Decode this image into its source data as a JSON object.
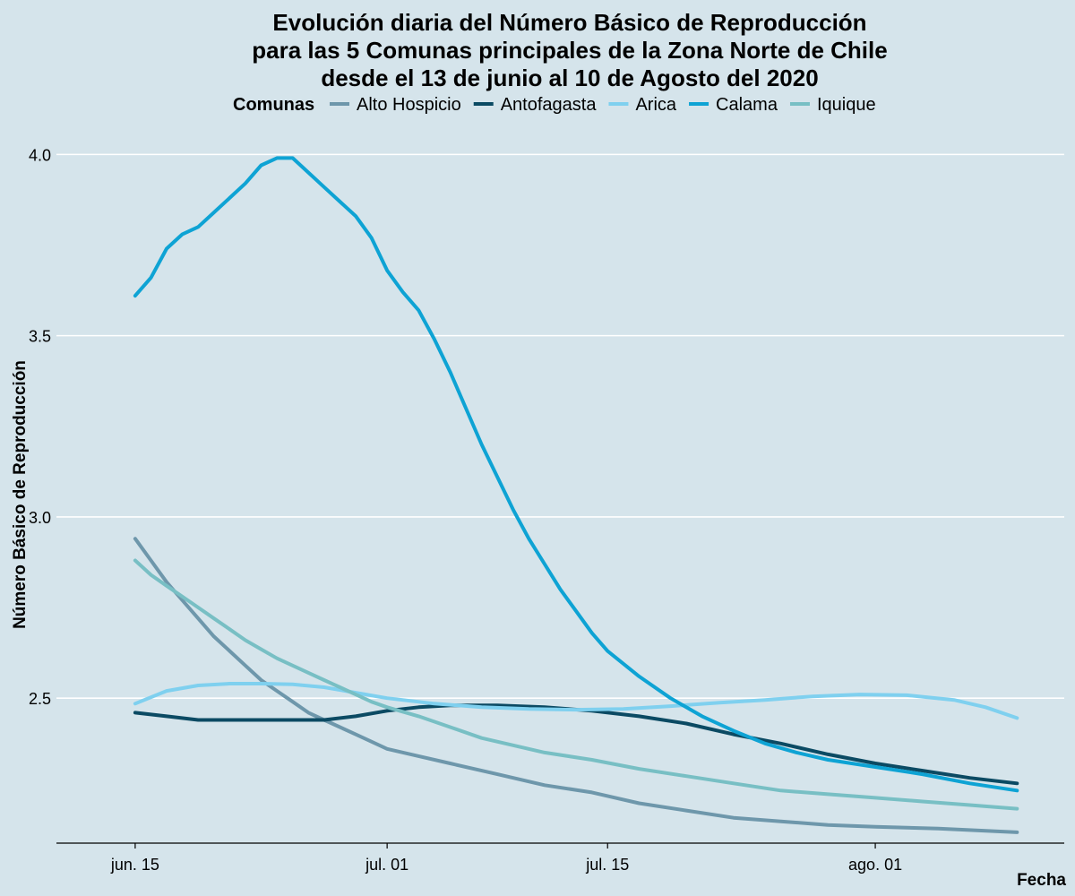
{
  "chart_data": {
    "type": "line",
    "title_lines": [
      "Evolución diaria del Número Básico de Reproducción",
      "para las 5 Comunas principales de la Zona Norte de Chile",
      "desde el 13 de junio al 10 de Agosto del 2020"
    ],
    "legend_title": "Comunas",
    "legend_position": "top",
    "xlabel": "Fecha",
    "ylabel": "Número Básico de Reproducción",
    "x_start_date": "2020-06-13",
    "x_range": [
      "2020-06-10",
      "2020-08-13"
    ],
    "y_range": [
      2.1,
      4.08
    ],
    "y_ticks": [
      {
        "value": 2.5,
        "label": "2.5"
      },
      {
        "value": 3.0,
        "label": "3.0"
      },
      {
        "value": 3.5,
        "label": "3.5"
      },
      {
        "value": 4.0,
        "label": "4.0"
      }
    ],
    "x_ticks": [
      {
        "date": "2020-06-15",
        "label": "jun. 15"
      },
      {
        "date": "2020-07-01",
        "label": "jul. 01"
      },
      {
        "date": "2020-07-15",
        "label": "jul. 15"
      },
      {
        "date": "2020-08-01",
        "label": "ago. 01"
      }
    ],
    "grid": "horizontal",
    "series": [
      {
        "name": "Alto Hospicio",
        "color": "#6e97ab",
        "points": [
          [
            "2020-06-15",
            2.94
          ],
          [
            "2020-06-16",
            2.88
          ],
          [
            "2020-06-17",
            2.82
          ],
          [
            "2020-06-18",
            2.77
          ],
          [
            "2020-06-19",
            2.72
          ],
          [
            "2020-06-20",
            2.67
          ],
          [
            "2020-06-21",
            2.63
          ],
          [
            "2020-06-22",
            2.59
          ],
          [
            "2020-06-23",
            2.55
          ],
          [
            "2020-06-24",
            2.52
          ],
          [
            "2020-06-25",
            2.49
          ],
          [
            "2020-06-26",
            2.46
          ],
          [
            "2020-06-27",
            2.44
          ],
          [
            "2020-06-28",
            2.42
          ],
          [
            "2020-06-29",
            2.4
          ],
          [
            "2020-06-30",
            2.38
          ],
          [
            "2020-07-01",
            2.36
          ],
          [
            "2020-07-03",
            2.34
          ],
          [
            "2020-07-05",
            2.32
          ],
          [
            "2020-07-08",
            2.29
          ],
          [
            "2020-07-11",
            2.26
          ],
          [
            "2020-07-14",
            2.24
          ],
          [
            "2020-07-17",
            2.21
          ],
          [
            "2020-07-20",
            2.19
          ],
          [
            "2020-07-23",
            2.17
          ],
          [
            "2020-07-26",
            2.16
          ],
          [
            "2020-07-29",
            2.15
          ],
          [
            "2020-08-01",
            2.145
          ],
          [
            "2020-08-05",
            2.14
          ],
          [
            "2020-08-10",
            2.13
          ]
        ]
      },
      {
        "name": "Antofagasta",
        "color": "#0b4a63",
        "points": [
          [
            "2020-06-15",
            2.46
          ],
          [
            "2020-06-17",
            2.45
          ],
          [
            "2020-06-19",
            2.44
          ],
          [
            "2020-06-21",
            2.44
          ],
          [
            "2020-06-23",
            2.44
          ],
          [
            "2020-06-25",
            2.44
          ],
          [
            "2020-06-27",
            2.44
          ],
          [
            "2020-06-29",
            2.45
          ],
          [
            "2020-07-01",
            2.465
          ],
          [
            "2020-07-03",
            2.475
          ],
          [
            "2020-07-05",
            2.48
          ],
          [
            "2020-07-08",
            2.48
          ],
          [
            "2020-07-11",
            2.475
          ],
          [
            "2020-07-14",
            2.465
          ],
          [
            "2020-07-17",
            2.45
          ],
          [
            "2020-07-20",
            2.43
          ],
          [
            "2020-07-23",
            2.4
          ],
          [
            "2020-07-26",
            2.375
          ],
          [
            "2020-07-29",
            2.345
          ],
          [
            "2020-08-01",
            2.32
          ],
          [
            "2020-08-04",
            2.3
          ],
          [
            "2020-08-07",
            2.28
          ],
          [
            "2020-08-10",
            2.265
          ]
        ]
      },
      {
        "name": "Arica",
        "color": "#7fd0ef",
        "points": [
          [
            "2020-06-15",
            2.485
          ],
          [
            "2020-06-17",
            2.52
          ],
          [
            "2020-06-19",
            2.535
          ],
          [
            "2020-06-21",
            2.54
          ],
          [
            "2020-06-23",
            2.54
          ],
          [
            "2020-06-25",
            2.538
          ],
          [
            "2020-06-27",
            2.53
          ],
          [
            "2020-06-29",
            2.515
          ],
          [
            "2020-07-01",
            2.5
          ],
          [
            "2020-07-04",
            2.485
          ],
          [
            "2020-07-07",
            2.475
          ],
          [
            "2020-07-10",
            2.47
          ],
          [
            "2020-07-13",
            2.468
          ],
          [
            "2020-07-16",
            2.47
          ],
          [
            "2020-07-19",
            2.478
          ],
          [
            "2020-07-22",
            2.487
          ],
          [
            "2020-07-25",
            2.495
          ],
          [
            "2020-07-28",
            2.505
          ],
          [
            "2020-07-31",
            2.51
          ],
          [
            "2020-08-03",
            2.508
          ],
          [
            "2020-08-06",
            2.495
          ],
          [
            "2020-08-08",
            2.475
          ],
          [
            "2020-08-10",
            2.445
          ]
        ]
      },
      {
        "name": "Calama",
        "color": "#0ea3d4",
        "points": [
          [
            "2020-06-15",
            3.61
          ],
          [
            "2020-06-16",
            3.66
          ],
          [
            "2020-06-17",
            3.74
          ],
          [
            "2020-06-18",
            3.78
          ],
          [
            "2020-06-19",
            3.8
          ],
          [
            "2020-06-20",
            3.84
          ],
          [
            "2020-06-21",
            3.88
          ],
          [
            "2020-06-22",
            3.92
          ],
          [
            "2020-06-23",
            3.97
          ],
          [
            "2020-06-24",
            3.99
          ],
          [
            "2020-06-25",
            3.99
          ],
          [
            "2020-06-26",
            3.95
          ],
          [
            "2020-06-27",
            3.91
          ],
          [
            "2020-06-28",
            3.87
          ],
          [
            "2020-06-29",
            3.83
          ],
          [
            "2020-06-30",
            3.77
          ],
          [
            "2020-07-01",
            3.68
          ],
          [
            "2020-07-02",
            3.62
          ],
          [
            "2020-07-03",
            3.57
          ],
          [
            "2020-07-04",
            3.49
          ],
          [
            "2020-07-05",
            3.4
          ],
          [
            "2020-07-06",
            3.3
          ],
          [
            "2020-07-07",
            3.2
          ],
          [
            "2020-07-08",
            3.11
          ],
          [
            "2020-07-09",
            3.02
          ],
          [
            "2020-07-10",
            2.94
          ],
          [
            "2020-07-11",
            2.87
          ],
          [
            "2020-07-12",
            2.8
          ],
          [
            "2020-07-13",
            2.74
          ],
          [
            "2020-07-14",
            2.68
          ],
          [
            "2020-07-15",
            2.63
          ],
          [
            "2020-07-17",
            2.56
          ],
          [
            "2020-07-19",
            2.5
          ],
          [
            "2020-07-21",
            2.45
          ],
          [
            "2020-07-23",
            2.41
          ],
          [
            "2020-07-25",
            2.375
          ],
          [
            "2020-07-27",
            2.35
          ],
          [
            "2020-07-29",
            2.33
          ],
          [
            "2020-08-01",
            2.31
          ],
          [
            "2020-08-04",
            2.29
          ],
          [
            "2020-08-07",
            2.265
          ],
          [
            "2020-08-10",
            2.245
          ]
        ]
      },
      {
        "name": "Iquique",
        "color": "#78bfc4",
        "points": [
          [
            "2020-06-15",
            2.88
          ],
          [
            "2020-06-16",
            2.84
          ],
          [
            "2020-06-17",
            2.81
          ],
          [
            "2020-06-18",
            2.78
          ],
          [
            "2020-06-19",
            2.75
          ],
          [
            "2020-06-20",
            2.72
          ],
          [
            "2020-06-21",
            2.69
          ],
          [
            "2020-06-22",
            2.66
          ],
          [
            "2020-06-23",
            2.635
          ],
          [
            "2020-06-24",
            2.61
          ],
          [
            "2020-06-25",
            2.59
          ],
          [
            "2020-06-26",
            2.57
          ],
          [
            "2020-06-27",
            2.55
          ],
          [
            "2020-06-28",
            2.53
          ],
          [
            "2020-06-29",
            2.51
          ],
          [
            "2020-06-30",
            2.49
          ],
          [
            "2020-07-01",
            2.475
          ],
          [
            "2020-07-03",
            2.45
          ],
          [
            "2020-07-05",
            2.42
          ],
          [
            "2020-07-07",
            2.39
          ],
          [
            "2020-07-09",
            2.37
          ],
          [
            "2020-07-11",
            2.35
          ],
          [
            "2020-07-14",
            2.33
          ],
          [
            "2020-07-17",
            2.305
          ],
          [
            "2020-07-20",
            2.285
          ],
          [
            "2020-07-23",
            2.265
          ],
          [
            "2020-07-26",
            2.245
          ],
          [
            "2020-07-29",
            2.235
          ],
          [
            "2020-08-01",
            2.225
          ],
          [
            "2020-08-04",
            2.215
          ],
          [
            "2020-08-07",
            2.205
          ],
          [
            "2020-08-10",
            2.195
          ]
        ]
      }
    ]
  }
}
